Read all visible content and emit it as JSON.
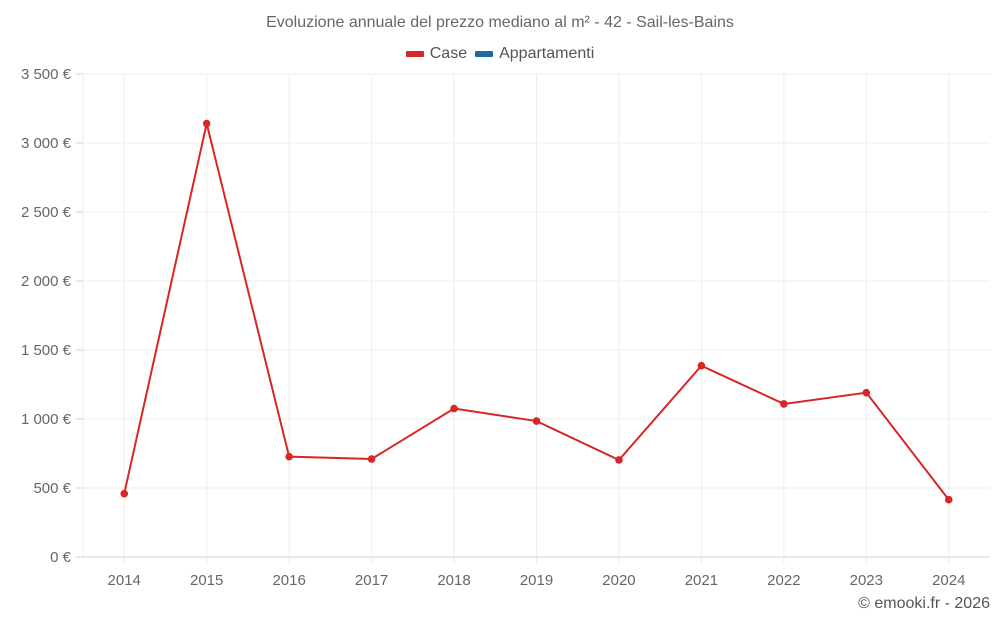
{
  "chart_data": {
    "type": "line",
    "title": "Evoluzione annuale del prezzo mediano al m² - 42 - Sail-les-Bains",
    "xlabel": "",
    "ylabel": "",
    "categories": [
      "2014",
      "2015",
      "2016",
      "2017",
      "2018",
      "2019",
      "2020",
      "2021",
      "2022",
      "2023",
      "2024"
    ],
    "series": [
      {
        "name": "Case",
        "color": "#d62728",
        "values": [
          459,
          3141,
          727,
          710,
          1076,
          985,
          703,
          1386,
          1109,
          1191,
          415
        ]
      },
      {
        "name": "Appartamenti",
        "color": "#1f6aa5",
        "values": []
      }
    ],
    "ylim": [
      0,
      3500
    ],
    "yticks": [
      0,
      500,
      1000,
      1500,
      2000,
      2500,
      3000,
      3500
    ],
    "ytick_labels": [
      "0 €",
      "500 €",
      "1 000 €",
      "1 500 €",
      "2 000 €",
      "2 500 €",
      "3 000 €",
      "3 500 €"
    ],
    "grid": true,
    "legend_position": "top"
  },
  "header": {
    "title": "Evoluzione annuale del prezzo mediano al m² - 42 - Sail-les-Bains"
  },
  "legend": {
    "items": [
      {
        "label": "Case",
        "color": "#d62728"
      },
      {
        "label": "Appartamenti",
        "color": "#1f6aa5"
      }
    ]
  },
  "footer": {
    "credit": "© emooki.fr - 2026"
  }
}
